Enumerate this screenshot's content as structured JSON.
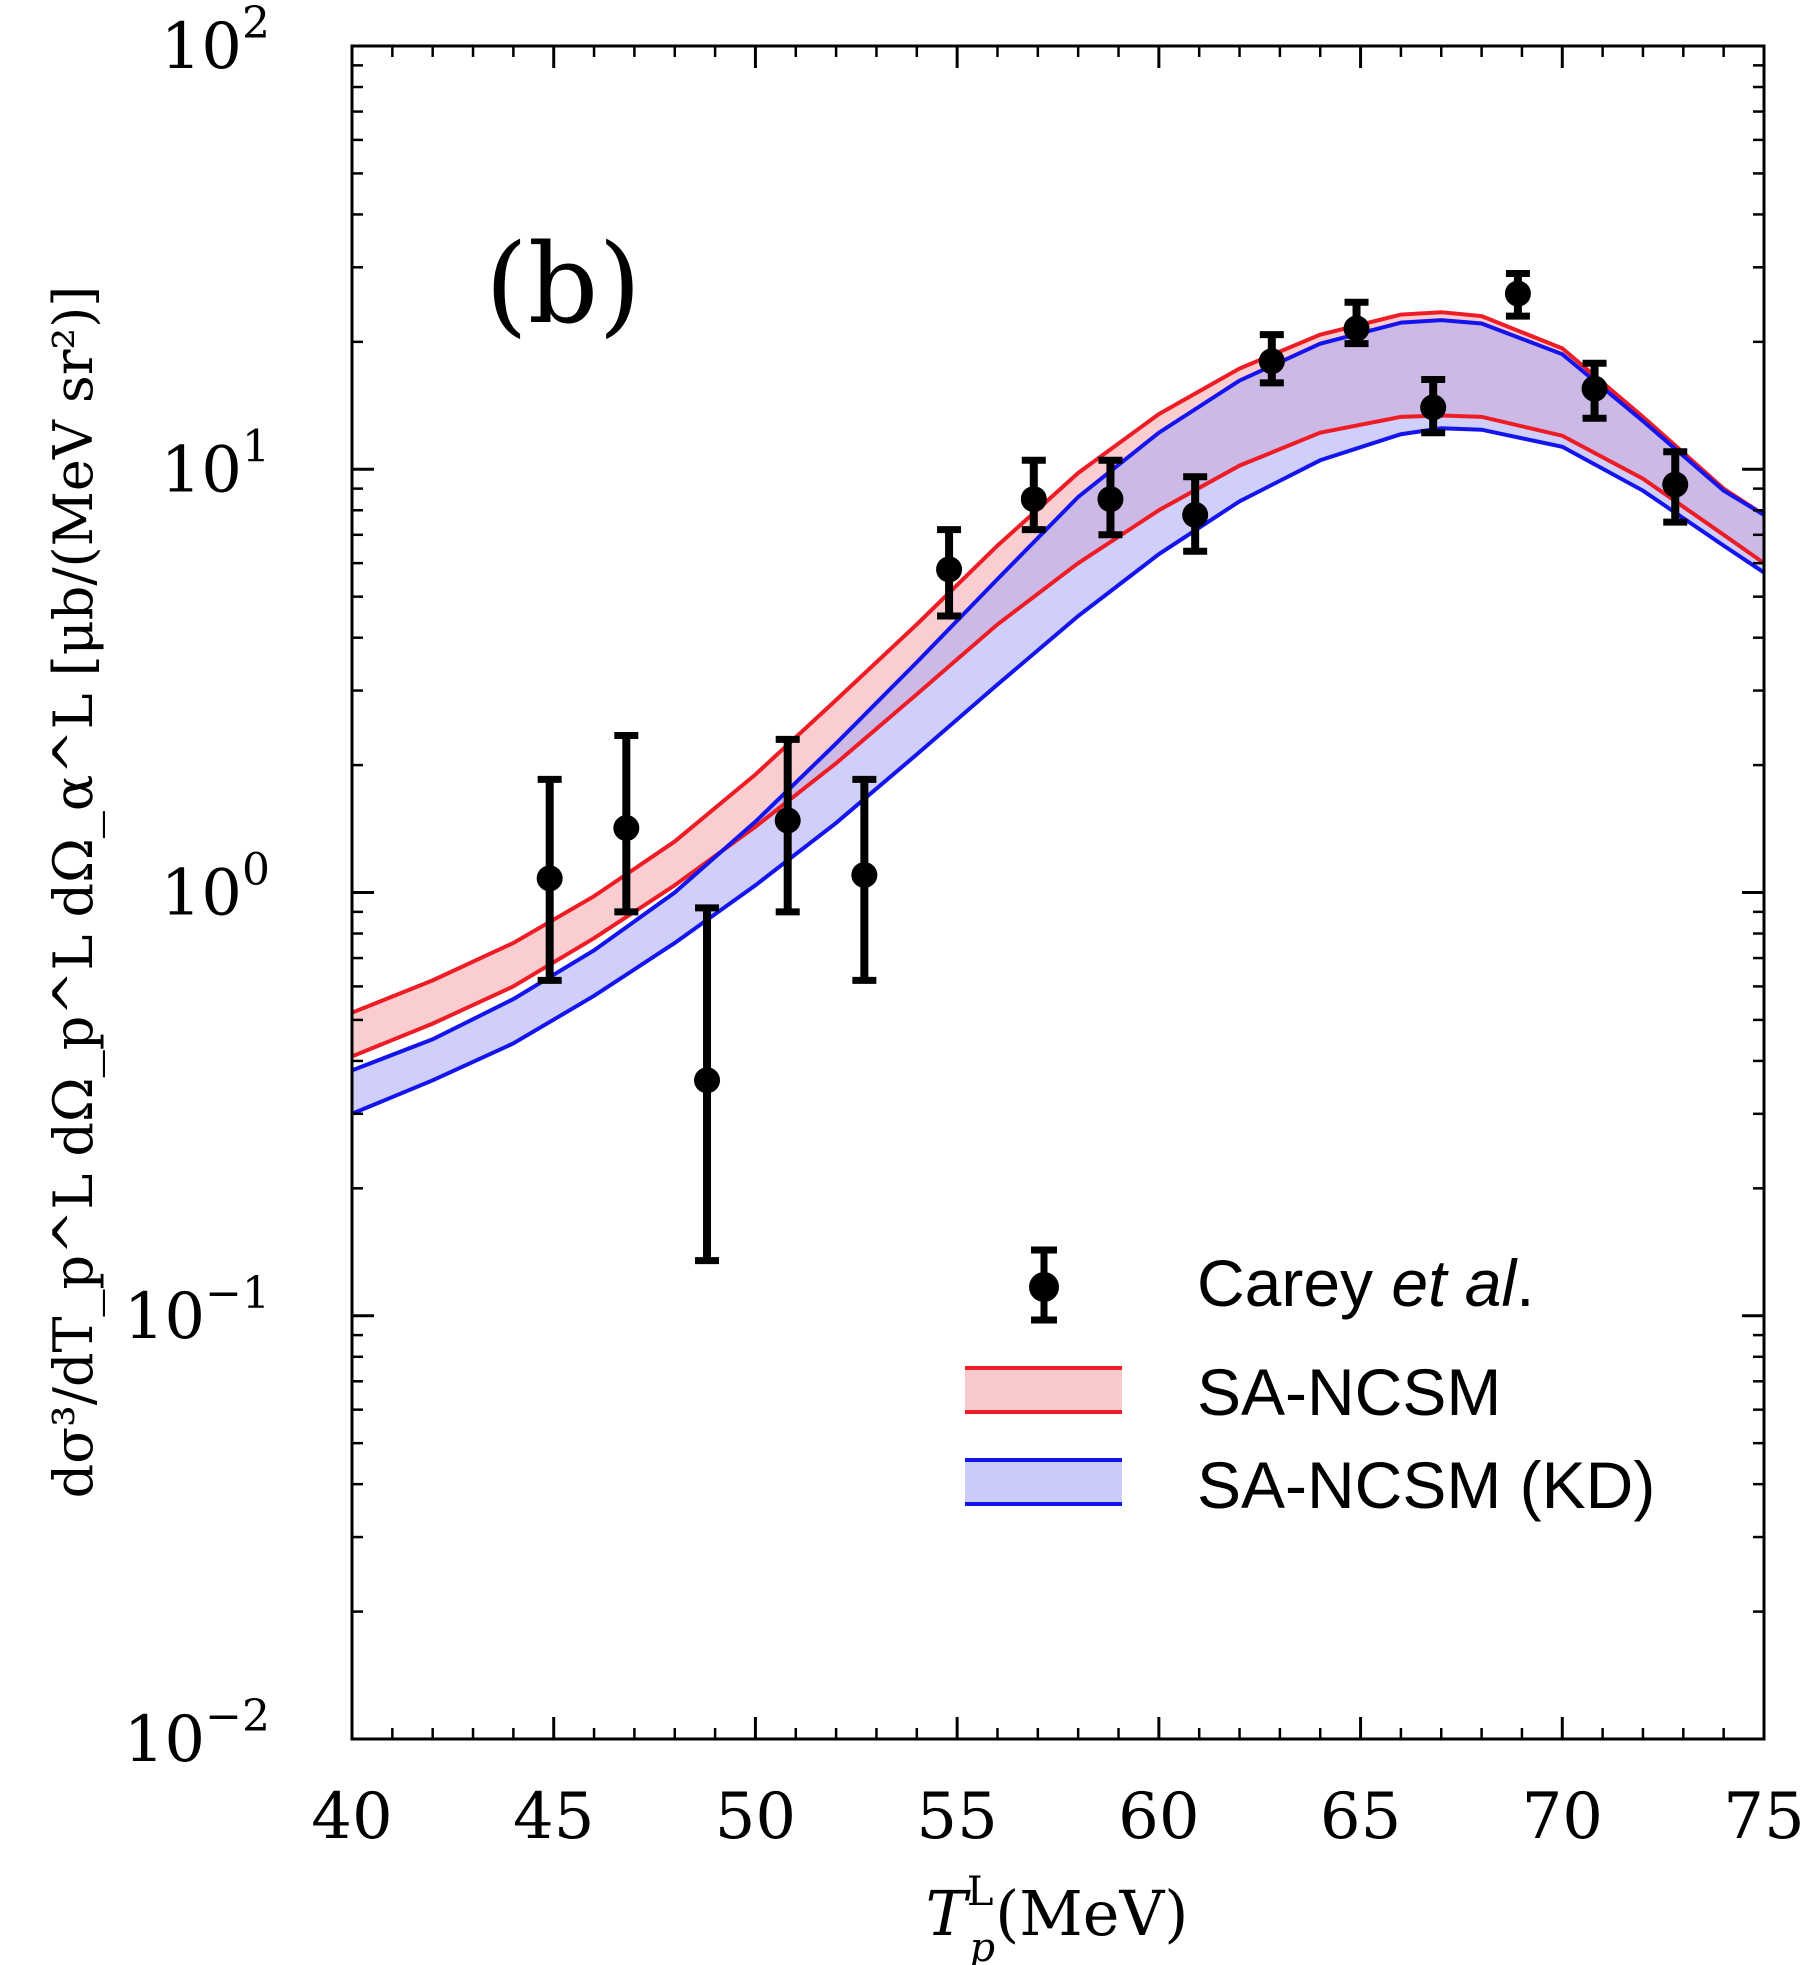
{
  "chart_data": {
    "type": "line",
    "panel_label": "(b)",
    "xlabel": {
      "base": "T",
      "sup": "L",
      "sub": "p",
      "unit": "(MeV)"
    },
    "ylabel": "dσ³/dT_p^L dΩ_p^L dΩ_α^L [μb/(MeV sr²)]",
    "xlim": [
      40,
      75
    ],
    "ylim": [
      0.01,
      100
    ],
    "yscale": "log",
    "x_ticks": [
      40,
      45,
      50,
      55,
      60,
      65,
      70,
      75
    ],
    "x_tick_labels": [
      "40",
      "45",
      "50",
      "55",
      "60",
      "65",
      "70",
      "75"
    ],
    "y_ticks": [
      {
        "base": "10",
        "exp": "−2",
        "value": 0.01
      },
      {
        "base": "10",
        "exp": "−1",
        "value": 0.1
      },
      {
        "base": "10",
        "exp": "0",
        "value": 1
      },
      {
        "base": "10",
        "exp": "1",
        "value": 10
      },
      {
        "base": "10",
        "exp": "2",
        "value": 100
      }
    ],
    "legend": {
      "placement": "lower-right",
      "entries": [
        {
          "label_main": "Carey ",
          "label_italic": "et al",
          "label_tail": ".",
          "kind": "errorbar"
        },
        {
          "label_main": "SA-NCSM",
          "label_italic": "",
          "label_tail": "",
          "kind": "band"
        },
        {
          "label_main": "SA-NCSM (KD)",
          "label_italic": "",
          "label_tail": "",
          "kind": "band"
        }
      ]
    },
    "series": [
      {
        "name": "Carey et al.",
        "kind": "data",
        "color": "#000000",
        "points": [
          {
            "x": 44.9,
            "y": 1.08,
            "lo": 0.62,
            "hi": 1.85
          },
          {
            "x": 46.8,
            "y": 1.42,
            "lo": 0.9,
            "hi": 2.35
          },
          {
            "x": 48.8,
            "y": 0.36,
            "lo": 0.135,
            "hi": 0.92
          },
          {
            "x": 50.8,
            "y": 1.48,
            "lo": 0.9,
            "hi": 2.3
          },
          {
            "x": 52.7,
            "y": 1.1,
            "lo": 0.62,
            "hi": 1.85
          },
          {
            "x": 54.8,
            "y": 5.8,
            "lo": 4.5,
            "hi": 7.2
          },
          {
            "x": 56.9,
            "y": 8.5,
            "lo": 7.2,
            "hi": 10.5
          },
          {
            "x": 58.8,
            "y": 8.5,
            "lo": 7.0,
            "hi": 10.5
          },
          {
            "x": 60.9,
            "y": 7.8,
            "lo": 6.4,
            "hi": 9.6
          },
          {
            "x": 62.8,
            "y": 18.0,
            "lo": 16.0,
            "hi": 20.8
          },
          {
            "x": 64.9,
            "y": 21.5,
            "lo": 19.8,
            "hi": 24.8
          },
          {
            "x": 66.8,
            "y": 14.0,
            "lo": 12.2,
            "hi": 16.3
          },
          {
            "x": 68.9,
            "y": 26.0,
            "lo": 23.0,
            "hi": 29.0
          },
          {
            "x": 70.8,
            "y": 15.5,
            "lo": 13.2,
            "hi": 17.8
          },
          {
            "x": 72.8,
            "y": 9.2,
            "lo": 7.5,
            "hi": 11.0
          }
        ]
      },
      {
        "name": "SA-NCSM",
        "kind": "band",
        "color": "#ee1c25",
        "fill": "#f5a5aa",
        "x": [
          40,
          42,
          44,
          46,
          48,
          50,
          52,
          54,
          56,
          58,
          60,
          62,
          64,
          66,
          67,
          68,
          70,
          72,
          74,
          75
        ],
        "upper": [
          0.52,
          0.62,
          0.76,
          0.98,
          1.32,
          1.9,
          2.85,
          4.3,
          6.6,
          9.8,
          13.5,
          17.3,
          20.8,
          23.2,
          23.5,
          23.0,
          19.3,
          13.3,
          9.0,
          7.8
        ],
        "lower": [
          0.41,
          0.49,
          0.6,
          0.78,
          1.04,
          1.43,
          2.02,
          2.94,
          4.3,
          6.0,
          8.0,
          10.2,
          12.2,
          13.3,
          13.4,
          13.3,
          12.0,
          9.5,
          7.0,
          6.0
        ]
      },
      {
        "name": "SA-NCSM (KD)",
        "kind": "band",
        "color": "#1414ee",
        "fill": "#a8a8f5",
        "x": [
          40,
          42,
          44,
          46,
          48,
          50,
          52,
          54,
          56,
          58,
          60,
          62,
          64,
          66,
          67,
          68,
          70,
          72,
          74,
          75
        ],
        "upper": [
          0.38,
          0.45,
          0.56,
          0.73,
          1.0,
          1.47,
          2.25,
          3.5,
          5.5,
          8.6,
          12.2,
          16.2,
          19.8,
          22.2,
          22.5,
          22.1,
          18.7,
          13.0,
          8.9,
          7.8
        ],
        "lower": [
          0.3,
          0.36,
          0.44,
          0.57,
          0.76,
          1.04,
          1.46,
          2.12,
          3.1,
          4.5,
          6.3,
          8.4,
          10.5,
          12.1,
          12.5,
          12.4,
          11.3,
          8.9,
          6.6,
          5.7
        ]
      }
    ]
  }
}
